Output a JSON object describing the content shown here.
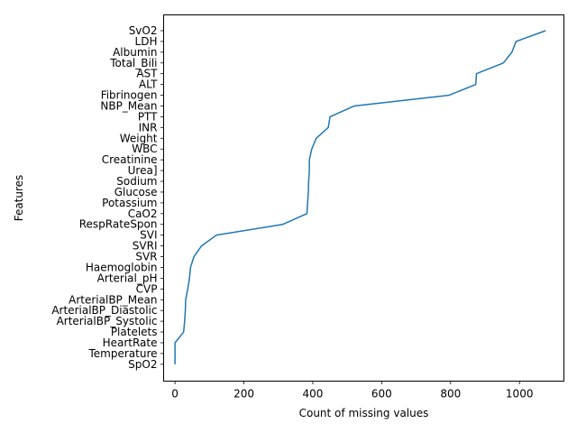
{
  "chart_data": {
    "type": "line",
    "title": "",
    "xlabel": "Count of missing values",
    "ylabel": "Features",
    "xlim": [
      -33,
      1129
    ],
    "x_ticks": [
      0,
      200,
      400,
      600,
      800,
      1000
    ],
    "grid": false,
    "legend": "none",
    "line_color": "#1f77b4",
    "categories": [
      "SvO2",
      "LDH",
      "Albumin",
      "Total_Bili",
      "AST",
      "ALT",
      "Fibrinogen",
      "NBP_Mean",
      "PTT",
      "INR",
      "Weight",
      "WBC",
      "Creatinine",
      "Urea]",
      "Sodium",
      "Glucose",
      "Potassium",
      "CaO2",
      "RespRateSpon",
      "SVI",
      "SVRI",
      "SVR",
      "Haemoglobin",
      "Arterial_pH",
      "CVP",
      "ArterialBP_Mean",
      "ArterialBP_Diastolic",
      "ArterialBP_Systolic",
      "Platelets",
      "HeartRate",
      "Temperature",
      "SpO2"
    ],
    "values": [
      1076,
      990,
      978,
      953,
      875,
      873,
      795,
      520,
      450,
      445,
      410,
      397,
      390,
      390,
      388,
      387,
      385,
      383,
      313,
      120,
      77,
      55,
      45,
      42,
      37,
      31,
      30,
      28,
      25,
      0,
      0,
      0
    ]
  }
}
